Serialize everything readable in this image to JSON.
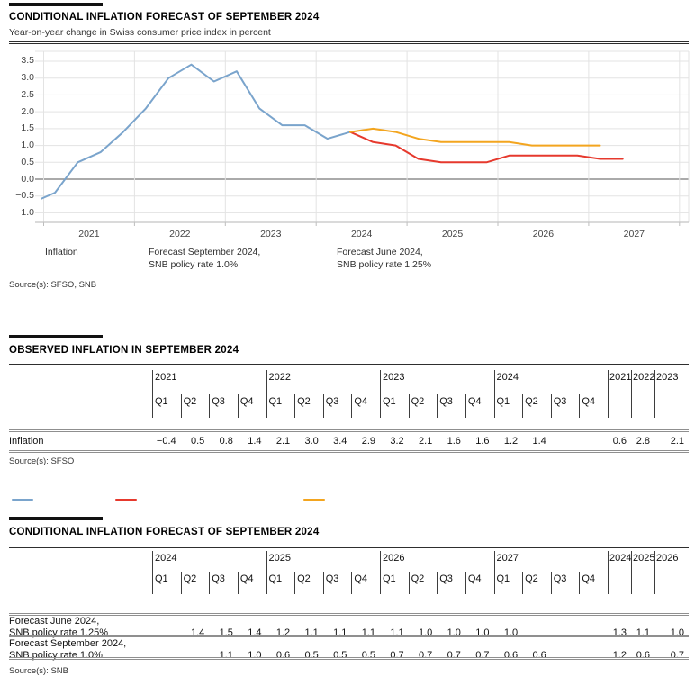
{
  "page": {
    "title": "CONDITIONAL INFLATION FORECAST OF SEPTEMBER 2024",
    "subtitle": "Year-on-year change in Swiss consumer price index in percent",
    "source": "Source(s): SFSO, SNB"
  },
  "legend": {
    "items": [
      {
        "id": "inflation",
        "color": "#7aa4cc",
        "line1": "Inflation",
        "line2": ""
      },
      {
        "id": "forecast-september",
        "color": "#e6392d",
        "line1": "Forecast September 2024,",
        "line2": "SNB policy rate 1.0%"
      },
      {
        "id": "forecast-june",
        "color": "#f3a51f",
        "line1": "Forecast June 2024,",
        "line2": "SNB policy rate 1.25%"
      }
    ]
  },
  "chart_data": {
    "type": "line",
    "title": "CONDITIONAL INFLATION FORECAST OF SEPTEMBER 2024",
    "subtitle": "Year-on-year change in Swiss consumer price index in percent",
    "xlabel": "",
    "ylabel": "Year-on-year change in Swiss consumer price index in percent",
    "ylim": [
      -1.0,
      3.5
    ],
    "ytick_values": [
      3.5,
      3.0,
      2.5,
      2.0,
      1.5,
      1.0,
      0.5,
      0.0,
      -0.5,
      -1.0
    ],
    "ytick_labels": [
      "3.5",
      "3.0",
      "2.5",
      "2.0",
      "1.5",
      "1.0",
      "0.5",
      "0.0",
      "−0.5",
      "−1.0"
    ],
    "xtick_labels": [
      "2021",
      "2022",
      "2023",
      "2024",
      "2025",
      "2026",
      "2027"
    ],
    "x_note": "x = year + (quarter - 0.5) / 4, quarterly points plotted at quarter midpoints",
    "grid": true,
    "legend_position": "bottom",
    "series": [
      {
        "name": "Inflation",
        "color": "#7aa4cc",
        "points": [
          [
            2020.875,
            -0.7
          ],
          [
            2021.125,
            -0.4
          ],
          [
            2021.375,
            0.5
          ],
          [
            2021.625,
            0.8
          ],
          [
            2021.875,
            1.4
          ],
          [
            2022.125,
            2.1
          ],
          [
            2022.375,
            3.0
          ],
          [
            2022.625,
            3.4
          ],
          [
            2022.875,
            2.9
          ],
          [
            2023.125,
            3.2
          ],
          [
            2023.375,
            2.1
          ],
          [
            2023.625,
            1.6
          ],
          [
            2023.875,
            1.6
          ],
          [
            2024.125,
            1.2
          ],
          [
            2024.375,
            1.4
          ]
        ]
      },
      {
        "name": "Forecast September 2024, SNB policy rate 1.0%",
        "color": "#e6392d",
        "points": [
          [
            2024.375,
            1.4
          ],
          [
            2024.625,
            1.1
          ],
          [
            2024.875,
            1.0
          ],
          [
            2025.125,
            0.6
          ],
          [
            2025.375,
            0.5
          ],
          [
            2025.625,
            0.5
          ],
          [
            2025.875,
            0.5
          ],
          [
            2026.125,
            0.7
          ],
          [
            2026.375,
            0.7
          ],
          [
            2026.625,
            0.7
          ],
          [
            2026.875,
            0.7
          ],
          [
            2027.125,
            0.6
          ],
          [
            2027.375,
            0.6
          ]
        ]
      },
      {
        "name": "Forecast June 2024, SNB policy rate 1.25%",
        "color": "#f3a51f",
        "points": [
          [
            2024.375,
            1.4
          ],
          [
            2024.625,
            1.5
          ],
          [
            2024.875,
            1.4
          ],
          [
            2025.125,
            1.2
          ],
          [
            2025.375,
            1.1
          ],
          [
            2025.625,
            1.1
          ],
          [
            2025.875,
            1.1
          ],
          [
            2026.125,
            1.1
          ],
          [
            2026.375,
            1.0
          ],
          [
            2026.625,
            1.0
          ],
          [
            2026.875,
            1.0
          ],
          [
            2027.125,
            1.0
          ]
        ]
      }
    ]
  },
  "table_observed": {
    "heading": "OBSERVED INFLATION IN SEPTEMBER 2024",
    "years": [
      {
        "label": "2021",
        "quarters": [
          "Q1",
          "Q2",
          "Q3",
          "Q4"
        ]
      },
      {
        "label": "2022",
        "quarters": [
          "Q1",
          "Q2",
          "Q3",
          "Q4"
        ]
      },
      {
        "label": "2023",
        "quarters": [
          "Q1",
          "Q2",
          "Q3",
          "Q4"
        ]
      },
      {
        "label": "2024",
        "quarters": [
          "Q1",
          "Q2",
          "Q3",
          "Q4"
        ]
      }
    ],
    "annual_years": [
      "2021",
      "2022",
      "2023"
    ],
    "rows": [
      {
        "label1": "Inflation",
        "label2": "",
        "values": [
          "−0.4",
          "0.5",
          "0.8",
          "1.4",
          "2.1",
          "3.0",
          "3.4",
          "2.9",
          "3.2",
          "2.1",
          "1.6",
          "1.6",
          "1.2",
          "1.4",
          "",
          ""
        ],
        "annual": [
          "0.6",
          "2.8",
          "2.1"
        ]
      }
    ],
    "source": "Source(s): SFSO"
  },
  "table_forecast": {
    "heading": "CONDITIONAL INFLATION FORECAST OF SEPTEMBER 2024",
    "years": [
      {
        "label": "2024",
        "quarters": [
          "Q1",
          "Q2",
          "Q3",
          "Q4"
        ]
      },
      {
        "label": "2025",
        "quarters": [
          "Q1",
          "Q2",
          "Q3",
          "Q4"
        ]
      },
      {
        "label": "2026",
        "quarters": [
          "Q1",
          "Q2",
          "Q3",
          "Q4"
        ]
      },
      {
        "label": "2027",
        "quarters": [
          "Q1",
          "Q2",
          "Q3",
          "Q4"
        ]
      }
    ],
    "annual_years": [
      "2024",
      "2025",
      "2026"
    ],
    "rows": [
      {
        "label1": "Forecast June 2024,",
        "label2": "SNB policy rate 1.25%",
        "values": [
          "",
          "1.4",
          "1.5",
          "1.4",
          "1.2",
          "1.1",
          "1.1",
          "1.1",
          "1.1",
          "1.0",
          "1.0",
          "1.0",
          "1.0",
          "",
          "",
          ""
        ],
        "annual": [
          "1.3",
          "1.1",
          "1.0"
        ]
      },
      {
        "label1": "Forecast September 2024,",
        "label2": "SNB policy rate 1.0%",
        "values": [
          "",
          "",
          "1.1",
          "1.0",
          "0.6",
          "0.5",
          "0.5",
          "0.5",
          "0.7",
          "0.7",
          "0.7",
          "0.7",
          "0.6",
          "0.6",
          "",
          ""
        ],
        "annual": [
          "1.2",
          "0.6",
          "0.7"
        ]
      }
    ],
    "source": "Source(s): SNB"
  }
}
